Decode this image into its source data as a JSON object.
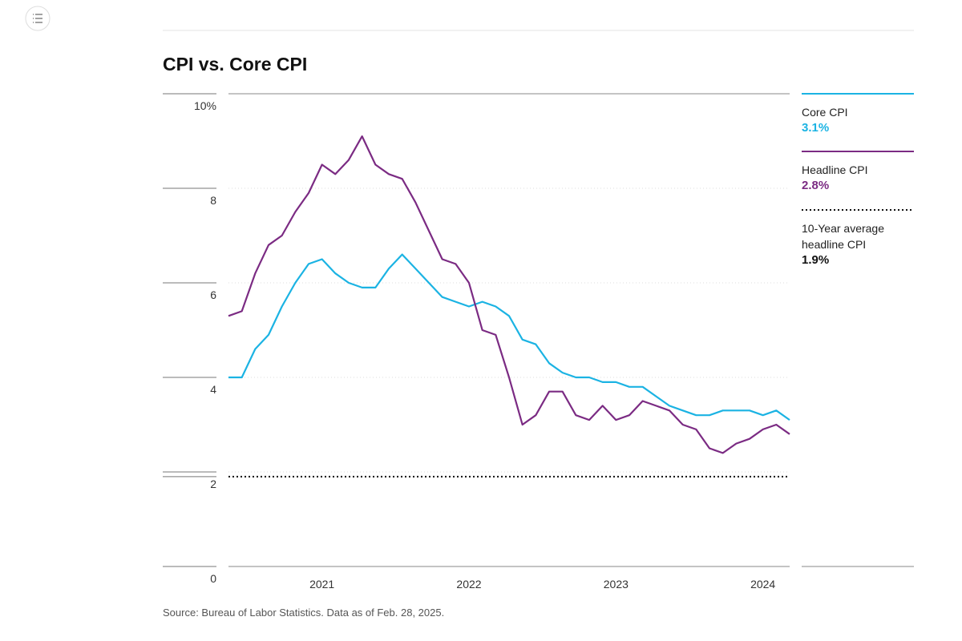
{
  "chart_data": {
    "type": "line",
    "title": "CPI vs. Core CPI",
    "source": "Source: Bureau of Labor Statistics. Data as of Feb. 28, 2025.",
    "categories": [
      null,
      null,
      null,
      null,
      null,
      null,
      null,
      "2021",
      null,
      null,
      null,
      null,
      null,
      null,
      null,
      null,
      null,
      null,
      "2022",
      null,
      null,
      null,
      null,
      null,
      null,
      null,
      null,
      null,
      null,
      "2023",
      null,
      null,
      null,
      null,
      null,
      null,
      null,
      null,
      null,
      null,
      "2024",
      null,
      null
    ],
    "series": [
      {
        "name": "Core CPI",
        "color": "#1bb3e3",
        "values": [
          4.0,
          4.0,
          4.6,
          4.9,
          5.5,
          6.0,
          6.4,
          6.5,
          6.2,
          6.0,
          5.9,
          5.9,
          6.3,
          6.6,
          6.3,
          6.0,
          5.7,
          5.6,
          5.5,
          5.6,
          5.5,
          5.3,
          4.8,
          4.7,
          4.3,
          4.1,
          4.0,
          4.0,
          3.9,
          3.9,
          3.8,
          3.8,
          3.6,
          3.4,
          3.3,
          3.2,
          3.2,
          3.3,
          3.3,
          3.3,
          3.2,
          3.3,
          3.1
        ],
        "value_labels": [
          null,
          null,
          null,
          null,
          null,
          null,
          null,
          null,
          null,
          null,
          null,
          null,
          null,
          null,
          null,
          null,
          null,
          null,
          null,
          null,
          null,
          null,
          null,
          null,
          null,
          null,
          null,
          null,
          null,
          null,
          null,
          null,
          null,
          null,
          null,
          null,
          null,
          null,
          null,
          null,
          null,
          null,
          "3.1%"
        ]
      },
      {
        "name": "Headline CPI",
        "color": "#7b2b83",
        "values": [
          5.3,
          5.4,
          6.2,
          6.8,
          7.0,
          7.5,
          7.9,
          8.5,
          8.3,
          8.6,
          9.1,
          8.5,
          8.3,
          8.2,
          7.7,
          7.1,
          6.5,
          6.4,
          6.0,
          5.0,
          4.9,
          4.0,
          3.0,
          3.2,
          3.7,
          3.7,
          3.2,
          3.1,
          3.4,
          3.1,
          3.2,
          3.5,
          3.4,
          3.3,
          3.0,
          2.9,
          2.5,
          2.4,
          2.6,
          2.7,
          2.9,
          3.0,
          2.8
        ],
        "value_labels": [
          null,
          null,
          null,
          null,
          null,
          null,
          null,
          null,
          null,
          null,
          null,
          null,
          null,
          null,
          null,
          null,
          null,
          null,
          null,
          null,
          null,
          null,
          null,
          null,
          null,
          null,
          null,
          null,
          null,
          null,
          null,
          null,
          null,
          null,
          null,
          null,
          null,
          null,
          null,
          null,
          null,
          null,
          "2.8%"
        ]
      }
    ],
    "reference": {
      "name": "10-Year average headline CPI",
      "value": 1.9,
      "value_label": "1.9%",
      "color": "#111111"
    },
    "ylim": [
      0,
      10
    ],
    "yticks": [
      0,
      2,
      4,
      6,
      8,
      {
        "value": 10,
        "label": "10%"
      }
    ],
    "grid": true
  }
}
